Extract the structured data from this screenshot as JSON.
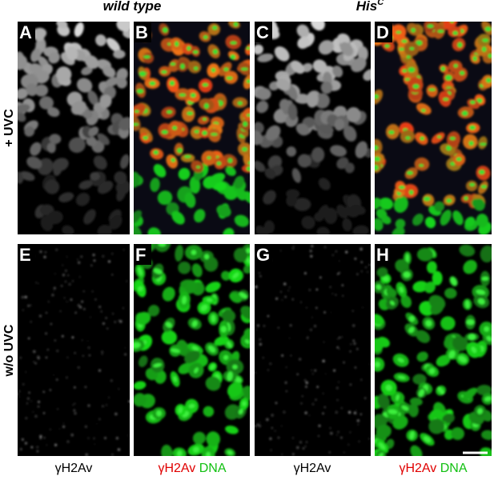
{
  "columns": [
    {
      "title": "wild type"
    },
    {
      "title": "His",
      "superscript": "C"
    }
  ],
  "rows": [
    {
      "label": "+ UVC"
    },
    {
      "label": "w/o UVC"
    }
  ],
  "panels": [
    "A",
    "B",
    "C",
    "D",
    "E",
    "F",
    "G",
    "H"
  ],
  "bottom_labels": [
    {
      "text": "γH2Av"
    },
    {
      "red": "γH2Av",
      "green": "DNA"
    },
    {
      "text": "γH2Av"
    },
    {
      "red": "γH2Av",
      "green": "DNA"
    }
  ]
}
